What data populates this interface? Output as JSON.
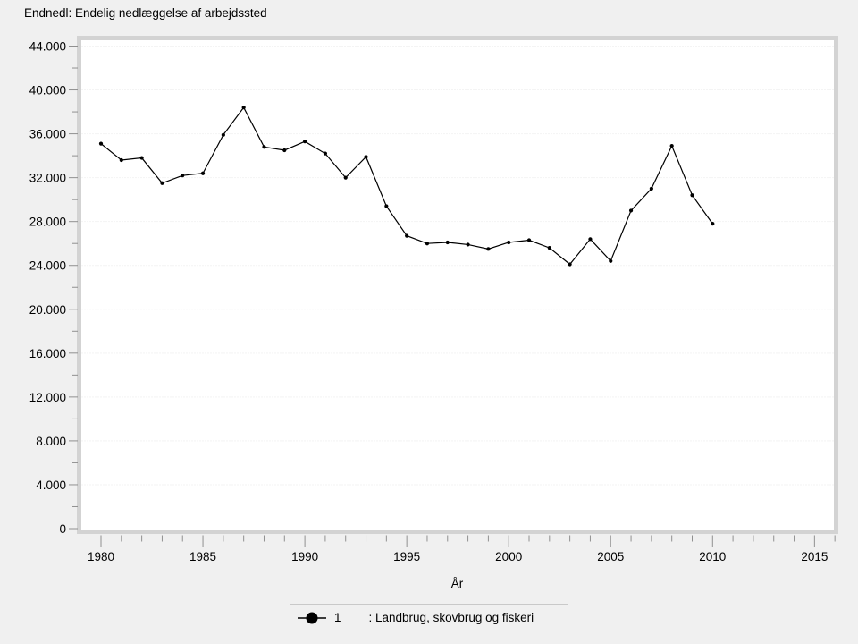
{
  "window": {
    "background": "#f0f0f0"
  },
  "title": "Endnedl: Endelig nedlæggelse af arbejdssted",
  "axes": {
    "x_label": "År",
    "y_tick_labels": [
      "0",
      "4.000",
      "8.000",
      "12.000",
      "16.000",
      "20.000",
      "24.000",
      "28.000",
      "32.000",
      "36.000",
      "40.000",
      "44.000"
    ],
    "x_tick_labels": [
      "1980",
      "1985",
      "1990",
      "1995",
      "2000",
      "2005",
      "2010",
      "2015"
    ]
  },
  "legend": {
    "series_number": "1",
    "series_label": ": Landbrug, skovbrug og fiskeri"
  },
  "colors": {
    "background": "#f0f0f0",
    "plot_background": "#ffffff",
    "plot_border": "#d3d3d3",
    "grid": "#e8e8e8",
    "tick": "#909090",
    "line": "#000000",
    "text": "#000000",
    "legend_border": "#c9c9c9"
  },
  "chart_data": {
    "type": "line",
    "title": "Endnedl: Endelig nedlæggelse af arbejdssted",
    "xlabel": "År",
    "ylabel": "",
    "x": [
      1980,
      1981,
      1982,
      1983,
      1984,
      1985,
      1986,
      1987,
      1988,
      1989,
      1990,
      1991,
      1992,
      1993,
      1994,
      1995,
      1996,
      1997,
      1998,
      1999,
      2000,
      2001,
      2002,
      2003,
      2004,
      2005,
      2006,
      2007,
      2008,
      2009,
      2010
    ],
    "series": [
      {
        "name": "1",
        "legend_label": ": Landbrug, skovbrug og fiskeri",
        "values": [
          35100,
          33600,
          33800,
          31500,
          32200,
          32400,
          35900,
          38400,
          34800,
          34500,
          35300,
          34200,
          32000,
          33900,
          29400,
          26700,
          26000,
          26100,
          25900,
          25500,
          26100,
          26300,
          25600,
          24100,
          26400,
          24400,
          29000,
          31000,
          34900,
          30400,
          27800
        ]
      }
    ],
    "xlim": [
      1980,
      2016
    ],
    "ylim": [
      0,
      44000
    ],
    "y_major_step": 4000,
    "y_minor_step": 2000,
    "x_major_step": 5,
    "x_minor_step": 1,
    "grid": "horizontal-dashed-major",
    "legend_position": "bottom-center",
    "line_color": "#000000",
    "marker": "filled-circle"
  }
}
